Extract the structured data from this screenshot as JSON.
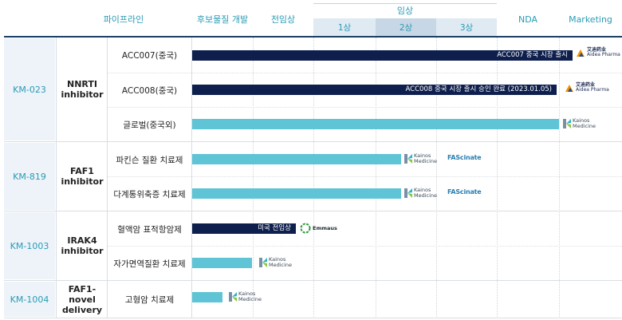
{
  "header": {
    "platform": "파이프라인",
    "candidate": "후보물질 개발",
    "preclinical": "전임상",
    "clinical": "임상",
    "phase1": "1상",
    "phase2": "2상",
    "phase3": "3상",
    "nda": "NDA",
    "marketing": "Marketing"
  },
  "groups": [
    {
      "code": "KM-023",
      "target": "NNRTI inhibitor"
    },
    {
      "code": "KM-819",
      "target": "FAF1 inhibitor"
    },
    {
      "code": "KM-1003",
      "target": "IRAK4 inhibitor"
    },
    {
      "code": "KM-1004",
      "target": "FAF1-novel delivery"
    }
  ],
  "programs": [
    {
      "name": "ACC007(중국)",
      "bar_label": "ACC007 중국 시장 출시",
      "progress_stage": "Marketing",
      "partner": "Aidea Pharma"
    },
    {
      "name": "ACC008(중국)",
      "bar_label": "ACC008 중국 시장 출시 승인 완료 (2023.01.05)",
      "progress_stage": "Marketing",
      "partner": "Aidea Pharma"
    },
    {
      "name": "글로벌(중국외)",
      "bar_label": "",
      "progress_stage": "Marketing",
      "partner": "Kainos Medicine"
    },
    {
      "name": "파킨슨 질환 치료제",
      "bar_label": "",
      "progress_stage": "2상",
      "partner": "Kainos Medicine / FAScinate"
    },
    {
      "name": "다계통위축증 치료제",
      "bar_label": "",
      "progress_stage": "2상",
      "partner": "Kainos Medicine / FAScinate"
    },
    {
      "name": "혈액암 표적항암제",
      "bar_label": "미국 전임상",
      "progress_stage": "전임상",
      "partner": "Emmaus"
    },
    {
      "name": "자가면역질환 치료제",
      "bar_label": "",
      "progress_stage": "후보물질 개발",
      "partner": "Kainos Medicine"
    },
    {
      "name": "고형암 치료제",
      "bar_label": "",
      "progress_stage": "후보물질 개발",
      "partner": "Kainos Medicine"
    }
  ],
  "logos": {
    "kainos_line1": "Kainos",
    "kainos_line2": "Medicine",
    "fascinate": "FAScinate",
    "aidea_cn": "艾迪药业",
    "aidea_en": "Aidea Pharma",
    "emmaus": "Emmaus"
  },
  "colors": {
    "accent": "#2a9bb5",
    "navy_bar": "#0e1f4d",
    "teal_bar": "#5ec4d6",
    "subheader": "#dfeaf3",
    "code_bg": "#edf3f9"
  }
}
